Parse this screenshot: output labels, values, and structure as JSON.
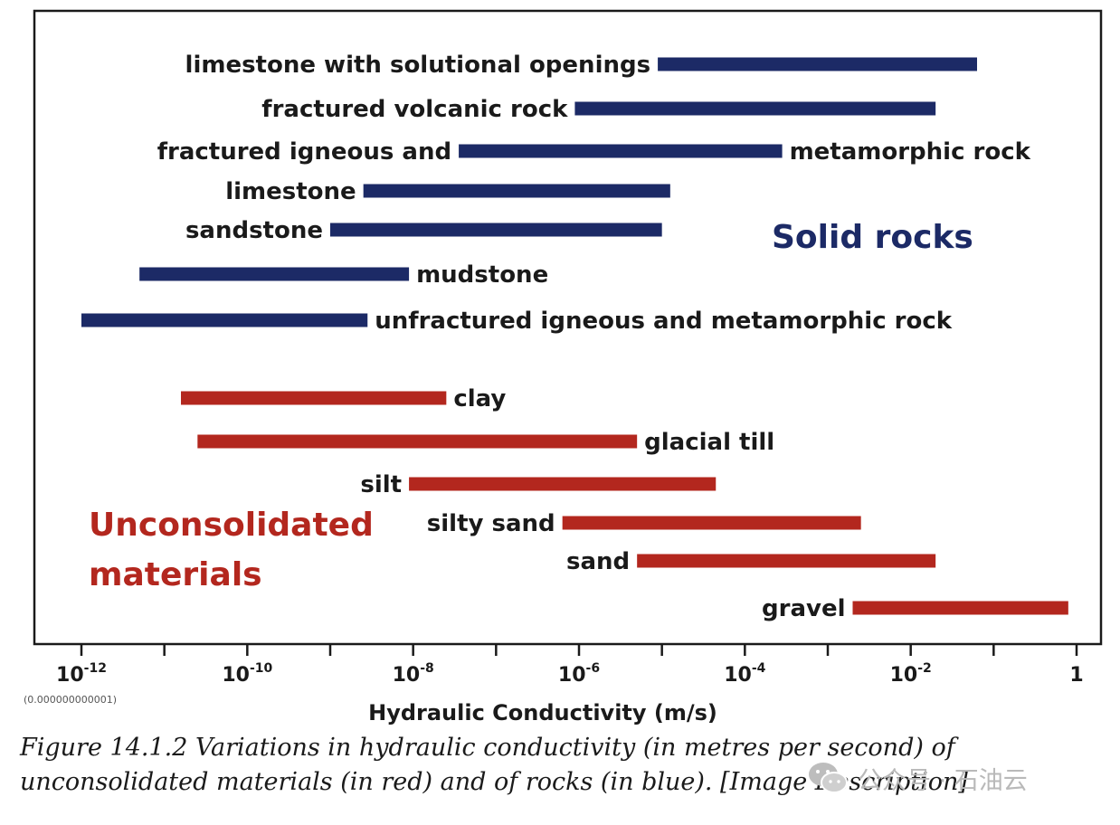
{
  "chart_data": {
    "type": "range-bar",
    "xlabel": "Hydraulic Conductivity (m/s)",
    "x_scale": "log10",
    "xlim": [
      -12.55,
      0.3
    ],
    "tick_exponents": [
      -12,
      -11,
      -10,
      -9,
      -8,
      -7,
      -6,
      -5,
      -4,
      -3,
      -2,
      -1,
      0
    ],
    "tick_labels": [
      {
        "exp": -12,
        "base": "10",
        "sup": "-12"
      },
      {
        "exp": -10,
        "base": "10",
        "sup": "-10"
      },
      {
        "exp": -8,
        "base": "10",
        "sup": "-8"
      },
      {
        "exp": -6,
        "base": "10",
        "sup": "-6"
      },
      {
        "exp": -4,
        "base": "10",
        "sup": "-4"
      },
      {
        "exp": -2,
        "base": "10",
        "sup": "-2"
      },
      {
        "exp": 0,
        "base": "1",
        "sup": ""
      }
    ],
    "tick_note": "(0.000000000001)",
    "group_labels": {
      "solid": "Solid rocks",
      "unconsolidated_line1": "Unconsolidated",
      "unconsolidated_line2": "materials"
    },
    "series": [
      {
        "name": "Solid rocks",
        "color": "#1c2a66",
        "items": [
          {
            "label": "limestone with solutional openings",
            "min": -5.05,
            "max": -1.2,
            "label_side": "left"
          },
          {
            "label": "fractured volcanic rock",
            "min": -6.05,
            "max": -1.7,
            "label_side": "left"
          },
          {
            "label_left": "fractured igneous and",
            "label_right": "metamorphic rock",
            "min": -7.45,
            "max": -3.55,
            "label_side": "both"
          },
          {
            "label": "limestone",
            "min": -8.6,
            "max": -4.9,
            "label_side": "left"
          },
          {
            "label": "sandstone",
            "min": -9.0,
            "max": -5.0,
            "label_side": "left"
          },
          {
            "label": "mudstone",
            "min": -11.3,
            "max": -8.05,
            "label_side": "right"
          },
          {
            "label": "unfractured igneous and metamorphic rock",
            "min": -12.0,
            "max": -8.55,
            "label_side": "right"
          }
        ]
      },
      {
        "name": "Unconsolidated materials",
        "color": "#b3271e",
        "items": [
          {
            "label": "clay",
            "min": -10.8,
            "max": -7.6,
            "label_side": "right"
          },
          {
            "label": "glacial till",
            "min": -10.6,
            "max": -5.3,
            "label_side": "right"
          },
          {
            "label": "silt",
            "min": -8.05,
            "max": -4.35,
            "label_side": "left"
          },
          {
            "label": "silty sand",
            "min": -6.2,
            "max": -2.6,
            "label_side": "left"
          },
          {
            "label": "sand",
            "min": -5.3,
            "max": -1.7,
            "label_side": "left"
          },
          {
            "label": "gravel",
            "min": -2.7,
            "max": -0.1,
            "label_side": "left"
          }
        ]
      }
    ]
  },
  "caption": "Figure 14.1.2 Variations in hydraulic conductivity (in metres per second) of unconsolidated materials (in red) and of rocks (in blue). [Image Description]",
  "watermark": {
    "text": "公众号 · 石油云",
    "icon": "wechat-icon"
  },
  "colors": {
    "solid": "#1c2a66",
    "unconsolidated": "#b3271e",
    "frame": "#1a1a1a"
  }
}
